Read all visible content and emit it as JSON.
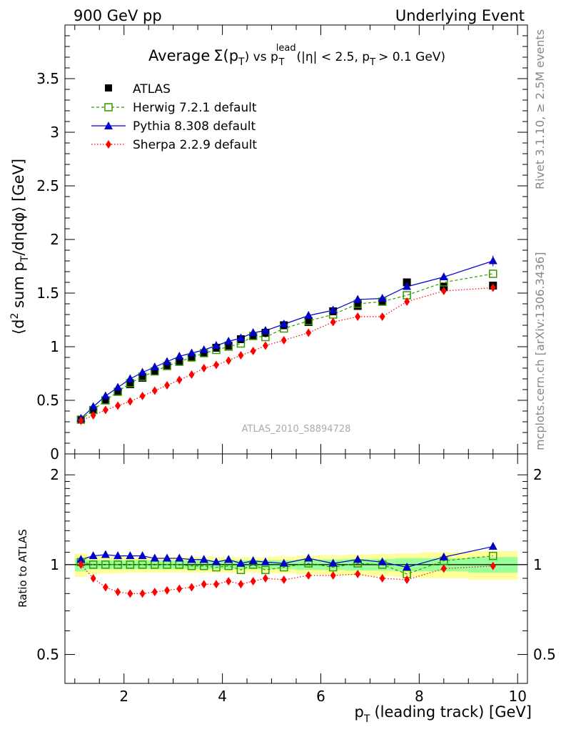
{
  "header": {
    "left": "900 GeV pp",
    "right": "Underlying Event"
  },
  "side_labels": {
    "rivet": "Rivet 3.1.10, ≥ 2.5M events",
    "mcplots": "mcplots.cern.ch [arXiv:1306.3436]"
  },
  "watermark": "ATLAS_2010_S8894728",
  "chart_data": {
    "type": "scatter",
    "title_parts": {
      "average": "Average",
      "sigma": "Σ(p",
      "sigma_sub": "T",
      "vs": ") vs p",
      "vs_sub": "T",
      "vs_sup": "lead",
      "cuts_a": "(|η| < 2.5, p",
      "cuts_sub": "T",
      "cuts_b": "> 0.1 GeV)"
    },
    "xlabel": "p_T (leading track) [GeV]",
    "xlabel_parts": {
      "p": "p",
      "sub": "T",
      "rest": "(leading track) [GeV]"
    },
    "ylabel_main": "⟨d² sum p_T/dηdφ⟩ [GeV]",
    "ylabel_main_parts": {
      "a": "⟨d",
      "sup": "2",
      "b": " sum p",
      "sub": "T",
      "c": "/dηdφ⟩ [GeV]"
    },
    "ylabel_ratio": "Ratio to ATLAS",
    "xlim": [
      0.8,
      10.2
    ],
    "ylim_main": [
      0,
      4.0
    ],
    "ylim_ratio": [
      0.4,
      2.35
    ],
    "ratio_log_scale": true,
    "x_ticks": [
      "2",
      "4",
      "6",
      "8",
      "10"
    ],
    "main_y_ticks": [
      "0",
      "0.5",
      "1",
      "1.5",
      "2",
      "2.5",
      "3",
      "3.5"
    ],
    "ratio_y_ticks": [
      "0.5",
      "1",
      "2"
    ],
    "x": [
      1.125,
      1.375,
      1.625,
      1.875,
      2.125,
      2.375,
      2.625,
      2.875,
      3.125,
      3.375,
      3.625,
      3.875,
      4.125,
      4.375,
      4.625,
      4.875,
      5.25,
      5.75,
      6.25,
      6.75,
      7.25,
      7.75,
      8.5,
      9.5
    ],
    "series": [
      {
        "name": "ATLAS",
        "color": "#000000",
        "marker": "square",
        "values": [
          0.32,
          0.41,
          0.5,
          0.58,
          0.65,
          0.71,
          0.77,
          0.82,
          0.86,
          0.9,
          0.94,
          0.99,
          1.01,
          1.07,
          1.1,
          1.13,
          1.2,
          1.23,
          1.33,
          1.38,
          1.42,
          1.6,
          1.56,
          1.57
        ]
      },
      {
        "name": "Herwig 7.2.1 default",
        "color": "#339900",
        "marker": "open-square",
        "values": [
          0.32,
          0.41,
          0.5,
          0.58,
          0.66,
          0.72,
          0.77,
          0.82,
          0.86,
          0.9,
          0.94,
          0.97,
          1.0,
          1.03,
          1.1,
          1.09,
          1.17,
          1.24,
          1.3,
          1.4,
          1.42,
          1.48,
          1.6,
          1.68
        ]
      },
      {
        "name": "Pythia 8.308 default",
        "color": "#0000cc",
        "marker": "triangle",
        "values": [
          0.33,
          0.44,
          0.54,
          0.62,
          0.7,
          0.76,
          0.81,
          0.86,
          0.91,
          0.94,
          0.97,
          1.01,
          1.05,
          1.08,
          1.13,
          1.15,
          1.21,
          1.29,
          1.34,
          1.44,
          1.45,
          1.56,
          1.65,
          1.8
        ]
      },
      {
        "name": "Sherpa 2.2.9 default",
        "color": "#ff0000",
        "marker": "diamond",
        "values": [
          0.31,
          0.36,
          0.41,
          0.45,
          0.49,
          0.54,
          0.59,
          0.64,
          0.69,
          0.74,
          0.8,
          0.83,
          0.87,
          0.92,
          0.96,
          1.01,
          1.06,
          1.13,
          1.23,
          1.28,
          1.28,
          1.42,
          1.52,
          1.55
        ]
      }
    ],
    "ratio_series": [
      {
        "name": "Herwig 7.2.1 default",
        "values": [
          1.02,
          1.0,
          1.0,
          1.0,
          1.0,
          1.0,
          1.0,
          1.0,
          1.0,
          0.99,
          0.99,
          0.98,
          0.99,
          0.96,
          1.0,
          0.96,
          0.98,
          1.01,
          0.98,
          1.01,
          1.0,
          0.93,
          1.03,
          1.07
        ]
      },
      {
        "name": "Pythia 8.308 default",
        "values": [
          1.04,
          1.07,
          1.08,
          1.07,
          1.07,
          1.07,
          1.05,
          1.05,
          1.05,
          1.04,
          1.04,
          1.02,
          1.04,
          1.01,
          1.03,
          1.02,
          1.01,
          1.05,
          1.01,
          1.04,
          1.02,
          0.98,
          1.06,
          1.15
        ]
      },
      {
        "name": "Sherpa 2.2.9 default",
        "values": [
          1.0,
          0.9,
          0.84,
          0.81,
          0.8,
          0.8,
          0.81,
          0.82,
          0.83,
          0.84,
          0.86,
          0.86,
          0.88,
          0.86,
          0.88,
          0.9,
          0.89,
          0.92,
          0.92,
          0.93,
          0.9,
          0.89,
          0.97,
          0.99
        ]
      }
    ],
    "legend_placement": "top-left",
    "grid": false
  }
}
